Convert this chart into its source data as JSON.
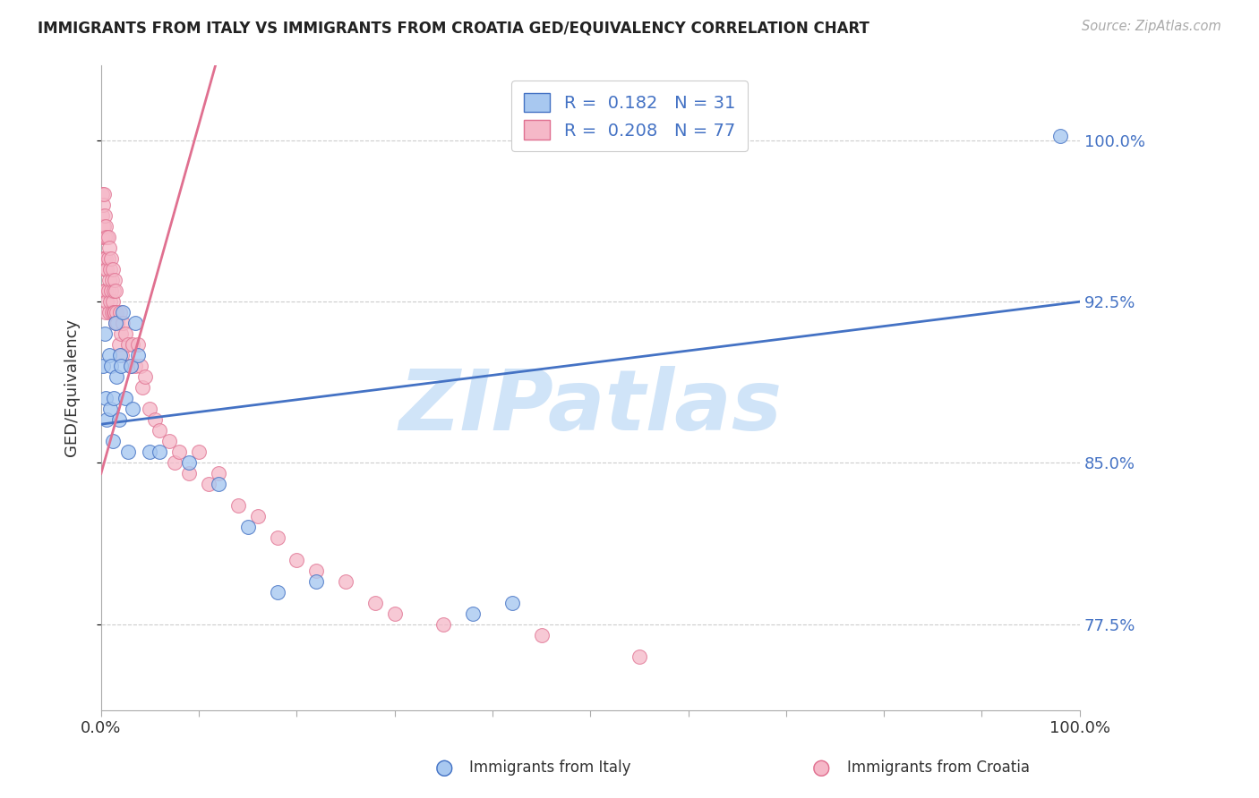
{
  "title": "IMMIGRANTS FROM ITALY VS IMMIGRANTS FROM CROATIA GED/EQUIVALENCY CORRELATION CHART",
  "source": "Source: ZipAtlas.com",
  "ylabel": "GED/Equivalency",
  "yticks": [
    0.775,
    0.85,
    0.925,
    1.0
  ],
  "ytick_labels": [
    "77.5%",
    "85.0%",
    "92.5%",
    "100.0%"
  ],
  "legend_italy": "Immigrants from Italy",
  "legend_croatia": "Immigrants from Croatia",
  "R_italy": "0.182",
  "N_italy": "31",
  "R_croatia": "0.208",
  "N_croatia": "77",
  "color_italy": "#A8C8F0",
  "color_croatia": "#F5B8C8",
  "line_color_italy": "#4472C4",
  "line_color_croatia": "#E07090",
  "watermark": "ZIPatlas",
  "watermark_color": "#D0E4F8",
  "italy_x": [
    0.002,
    0.004,
    0.005,
    0.006,
    0.008,
    0.009,
    0.01,
    0.012,
    0.013,
    0.015,
    0.016,
    0.018,
    0.019,
    0.02,
    0.022,
    0.025,
    0.028,
    0.03,
    0.032,
    0.035,
    0.038,
    0.05,
    0.06,
    0.09,
    0.12,
    0.15,
    0.18,
    0.22,
    0.38,
    0.42,
    0.98
  ],
  "italy_y": [
    0.895,
    0.91,
    0.88,
    0.87,
    0.9,
    0.875,
    0.895,
    0.86,
    0.88,
    0.915,
    0.89,
    0.87,
    0.9,
    0.895,
    0.92,
    0.88,
    0.855,
    0.895,
    0.875,
    0.915,
    0.9,
    0.855,
    0.855,
    0.85,
    0.84,
    0.82,
    0.79,
    0.795,
    0.78,
    0.785,
    1.002
  ],
  "croatia_x": [
    0.001,
    0.001,
    0.001,
    0.002,
    0.002,
    0.002,
    0.003,
    0.003,
    0.003,
    0.003,
    0.004,
    0.004,
    0.004,
    0.005,
    0.005,
    0.005,
    0.005,
    0.006,
    0.006,
    0.006,
    0.007,
    0.007,
    0.007,
    0.008,
    0.008,
    0.008,
    0.009,
    0.009,
    0.01,
    0.01,
    0.011,
    0.011,
    0.012,
    0.012,
    0.013,
    0.013,
    0.014,
    0.014,
    0.015,
    0.015,
    0.016,
    0.017,
    0.018,
    0.019,
    0.02,
    0.021,
    0.022,
    0.025,
    0.028,
    0.03,
    0.032,
    0.035,
    0.038,
    0.04,
    0.042,
    0.045,
    0.05,
    0.055,
    0.06,
    0.07,
    0.075,
    0.08,
    0.09,
    0.1,
    0.11,
    0.12,
    0.14,
    0.16,
    0.18,
    0.2,
    0.22,
    0.25,
    0.28,
    0.3,
    0.35,
    0.45,
    0.55
  ],
  "croatia_y": [
    0.975,
    0.965,
    0.955,
    0.97,
    0.96,
    0.945,
    0.975,
    0.96,
    0.945,
    0.93,
    0.965,
    0.955,
    0.94,
    0.96,
    0.945,
    0.93,
    0.92,
    0.955,
    0.94,
    0.925,
    0.955,
    0.945,
    0.93,
    0.95,
    0.935,
    0.92,
    0.94,
    0.925,
    0.945,
    0.93,
    0.935,
    0.92,
    0.94,
    0.925,
    0.93,
    0.92,
    0.935,
    0.92,
    0.93,
    0.915,
    0.92,
    0.915,
    0.905,
    0.92,
    0.91,
    0.9,
    0.915,
    0.91,
    0.905,
    0.895,
    0.905,
    0.895,
    0.905,
    0.895,
    0.885,
    0.89,
    0.875,
    0.87,
    0.865,
    0.86,
    0.85,
    0.855,
    0.845,
    0.855,
    0.84,
    0.845,
    0.83,
    0.825,
    0.815,
    0.805,
    0.8,
    0.795,
    0.785,
    0.78,
    0.775,
    0.77,
    0.76
  ],
  "xmin": 0.0,
  "xmax": 1.0,
  "ymin": 0.735,
  "ymax": 1.035
}
